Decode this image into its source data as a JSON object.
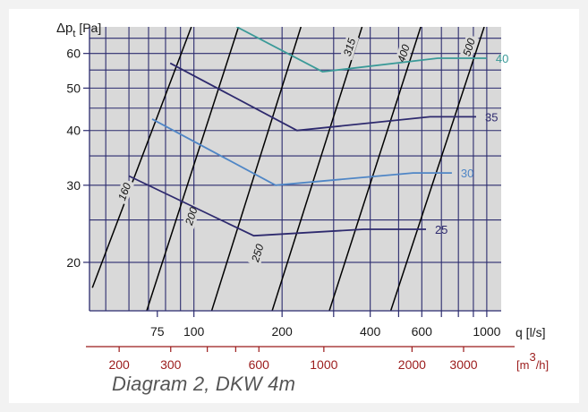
{
  "figure": {
    "caption": "Diagram 2, DKW 4m"
  },
  "colors": {
    "plot_bg": "#d9d9d9",
    "grid": "#2b2b6e",
    "diameter_line": "#000000",
    "secondary_axis": "#9b1b1b",
    "speed_25": "#2e2a6e",
    "speed_30": "#4f86c6",
    "speed_35": "#2e2a6e",
    "speed_40": "#3a9a98"
  },
  "chart_data": {
    "type": "line",
    "xscale": "log",
    "yscale": "log",
    "xlim": [
      44,
      1120
    ],
    "ylim": [
      15.5,
      69
    ],
    "y_axis_label_parts": [
      "Δp",
      "t",
      " [Pa]"
    ],
    "x_axis_label": "q [l/s]",
    "secondary_x_axis_label_parts": [
      "[m",
      "3",
      "/h]"
    ],
    "y_ticks": [
      20,
      30,
      40,
      50,
      60
    ],
    "x_ticks": [
      75,
      100,
      200,
      400,
      600,
      1000
    ],
    "x_minor_ticks": [
      300,
      500,
      700,
      800,
      900
    ],
    "y_gridlines": [
      20,
      25,
      30,
      35,
      40,
      45,
      50,
      55,
      60,
      65
    ],
    "x_gridlines": [
      50,
      60,
      70,
      80,
      90,
      100,
      200,
      300,
      400,
      500,
      600,
      700,
      800,
      900,
      1000
    ],
    "secondary_x_ticks": [
      200,
      300,
      600,
      1000,
      2000,
      3000
    ],
    "secondary_x_minor_ticks": [
      400,
      500
    ],
    "secondary_x_scale_factor": 3.6,
    "series": [
      {
        "name": "25",
        "color_key": "speed_25",
        "x": [
          60,
          160,
          380,
          620
        ],
        "y": [
          31.5,
          23.0,
          23.8,
          23.8
        ]
      },
      {
        "name": "30",
        "color_key": "speed_30",
        "x": [
          72,
          190,
          560,
          760
        ],
        "y": [
          42.5,
          30.0,
          32.0,
          32.0
        ]
      },
      {
        "name": "35",
        "color_key": "speed_35",
        "x": [
          83,
          225,
          640,
          920
        ],
        "y": [
          57.0,
          40.0,
          43.0,
          43.0
        ]
      },
      {
        "name": "40",
        "color_key": "speed_40",
        "x": [
          140,
          275,
          680,
          1000
        ],
        "y": [
          69,
          54.5,
          58.5,
          58.5
        ]
      }
    ],
    "diameter_lines": [
      {
        "label": "160",
        "x1": 45,
        "y1": 17.5,
        "x2": 98,
        "y2": 69,
        "label_x": 58,
        "label_y": 29
      },
      {
        "label": "200",
        "x1": 69,
        "y1": 15.5,
        "x2": 142,
        "y2": 69,
        "label_x": 98,
        "label_y": 25.5
      },
      {
        "label": "250",
        "x1": 115,
        "y1": 15.5,
        "x2": 232,
        "y2": 69,
        "label_x": 165,
        "label_y": 21.0
      },
      {
        "label": "315",
        "x1": 185,
        "y1": 15.5,
        "x2": 375,
        "y2": 69,
        "label_x": 340,
        "label_y": 62
      },
      {
        "label": "400",
        "x1": 290,
        "y1": 15.5,
        "x2": 595,
        "y2": 69,
        "label_x": 520,
        "label_y": 60
      },
      {
        "label": "500",
        "x1": 470,
        "y1": 15.5,
        "x2": 980,
        "y2": 69,
        "label_x": 870,
        "label_y": 62
      }
    ]
  }
}
